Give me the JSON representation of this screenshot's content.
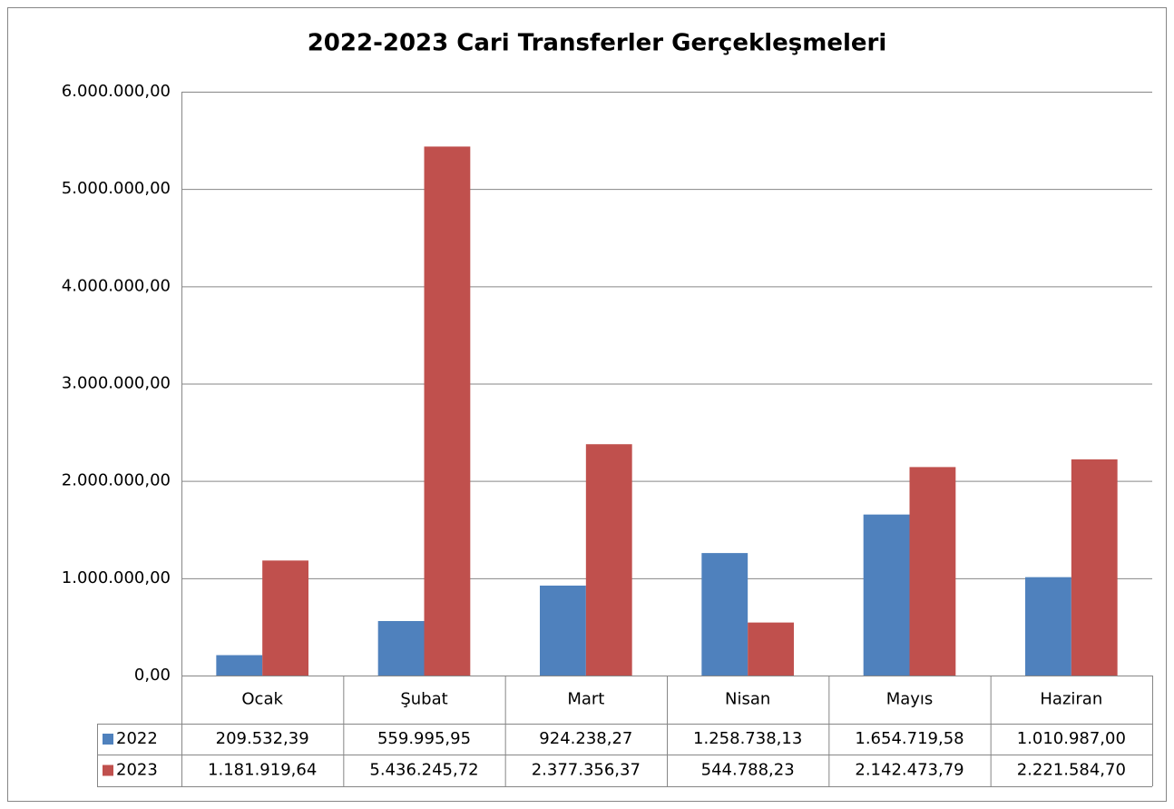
{
  "chart_data": {
    "type": "bar",
    "title": "2022-2023 Cari Transferler Gerçekleşmeleri",
    "categories": [
      "Ocak",
      "Şubat",
      "Mart",
      "Nisan",
      "Mayıs",
      "Haziran"
    ],
    "series": [
      {
        "name": "2022",
        "color": "#4f81bd",
        "values": [
          209532.39,
          559995.95,
          924238.27,
          1258738.13,
          1654719.58,
          1010987.0
        ],
        "value_labels": [
          "209.532,39",
          "559.995,95",
          "924.238,27",
          "1.258.738,13",
          "1.654.719,58",
          "1.010.987,00"
        ]
      },
      {
        "name": "2023",
        "color": "#c0504d",
        "values": [
          1181919.64,
          5436245.72,
          2377356.37,
          544788.23,
          2142473.79,
          2221584.7
        ],
        "value_labels": [
          "1.181.919,64",
          "5.436.245,72",
          "2.377.356,37",
          "544.788,23",
          "2.142.473,79",
          "2.221.584,70"
        ]
      }
    ],
    "ylim": [
      0,
      6000000
    ],
    "yticks": [
      {
        "value": 0,
        "label": "0,00"
      },
      {
        "value": 1000000,
        "label": "1.000.000,00"
      },
      {
        "value": 2000000,
        "label": "2.000.000,00"
      },
      {
        "value": 3000000,
        "label": "3.000.000,00"
      },
      {
        "value": 4000000,
        "label": "4.000.000,00"
      },
      {
        "value": 5000000,
        "label": "5.000.000,00"
      },
      {
        "value": 6000000,
        "label": "6.000.000,00"
      }
    ],
    "grid": true
  }
}
